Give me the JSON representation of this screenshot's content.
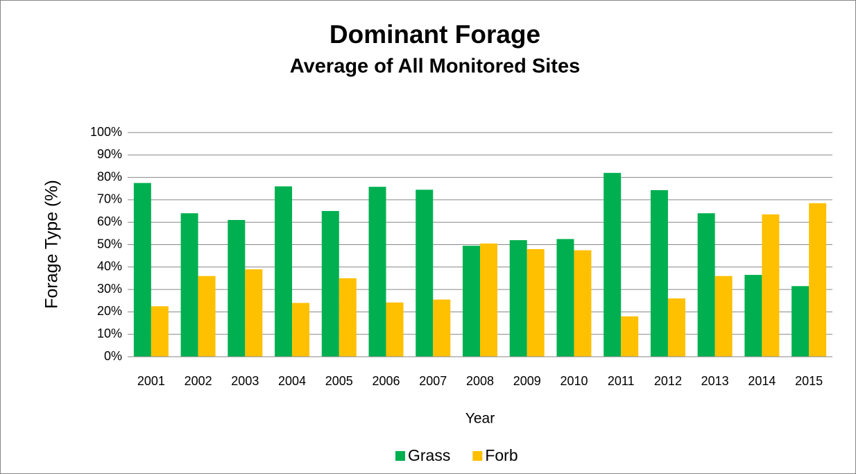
{
  "chart_data": {
    "type": "bar",
    "title": "Dominant Forage",
    "subtitle": "Average of All Monitored Sites",
    "x_label": "Year",
    "y_label": "Forage Type (%)",
    "categories": [
      "2001",
      "2002",
      "2003",
      "2004",
      "2005",
      "2006",
      "2007",
      "2008",
      "2009",
      "2010",
      "2011",
      "2012",
      "2013",
      "2014",
      "2015"
    ],
    "series": [
      {
        "name": "Grass",
        "color": "#00b050",
        "values": [
          77.5,
          64,
          61,
          76,
          65,
          75.8,
          74.5,
          49.5,
          52,
          52.5,
          82,
          74.3,
          64,
          36.5,
          31.5
        ]
      },
      {
        "name": "Forb",
        "color": "#ffc000",
        "values": [
          22.5,
          36,
          39,
          24,
          35,
          24.2,
          25.5,
          50.5,
          48,
          47.5,
          18,
          26,
          36,
          63.5,
          68.5
        ]
      }
    ],
    "ylim": [
      0,
      100
    ],
    "yticks": [
      {
        "value": 0,
        "label": "0%"
      },
      {
        "value": 10,
        "label": "10%"
      },
      {
        "value": 20,
        "label": "20%"
      },
      {
        "value": 30,
        "label": "30%"
      },
      {
        "value": 40,
        "label": "40%"
      },
      {
        "value": 50,
        "label": "50%"
      },
      {
        "value": 60,
        "label": "60%"
      },
      {
        "value": 70,
        "label": "70%"
      },
      {
        "value": 80,
        "label": "80%"
      },
      {
        "value": 90,
        "label": "90%"
      },
      {
        "value": 100,
        "label": "100%"
      }
    ],
    "grid": true,
    "legend": "bottom"
  }
}
